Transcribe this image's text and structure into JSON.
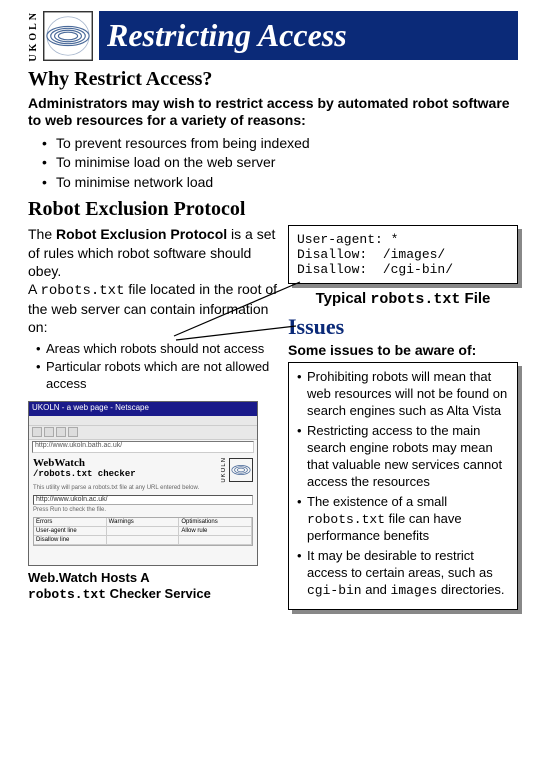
{
  "brand_vertical": "UKOLN",
  "title": "Restricting Access",
  "colors": {
    "title_bg": "#0b2a78",
    "title_fg": "#ffffff",
    "issues_title": "#0b2a78",
    "box_shadow": "#888888",
    "border": "#000000"
  },
  "section1": {
    "heading": "Why Restrict Access?",
    "intro": "Administrators may wish to restrict access by automated robot software to web resources for a variety of reasons:",
    "bullets": [
      "To prevent resources from being indexed",
      "To minimise load on the web server",
      "To minimise network load"
    ]
  },
  "section2": {
    "heading": "Robot Exclusion Protocol",
    "paragraph_html": "The <b>Robot Exclusion Protocol</b> is a set of rules which robot software should obey.<br>A <span class='mono'>robots.txt</span> file located in the root of the web server can contain information on:",
    "sub_bullets": [
      "Areas which robots should not access",
      "Particular robots which are not allowed access"
    ]
  },
  "codebox": {
    "lines": [
      "User-agent: *",
      "Disallow:  /images/",
      "Disallow:  /cgi-bin/"
    ],
    "caption_prefix": "Typical ",
    "caption_code": "robots.txt",
    "caption_suffix": " File"
  },
  "issues": {
    "heading": "Issues",
    "intro": "Some issues to be aware of:",
    "items_html": [
      "Prohibiting robots will mean that web resources will not be found on search engines such as Alta Vista",
      "Restricting access to the main search engine robots may mean that valuable new services cannot access the resources",
      "The existence of a small <span class='mono'>robots.txt</span> file can have performance benefits",
      "It may be desirable to restrict access to certain areas, such as <span class='mono'>cgi-bin</span> and <span class='mono'>images</span> directories."
    ]
  },
  "screenshot": {
    "window_title": "UKOLN - a web page - Netscape",
    "url_hint": "http://www.ukoln.bath.ac.uk/",
    "page_heading": "WebWatch",
    "page_sub": "/robots.txt checker",
    "input_hint": "http://www.ukoln.ac.uk/",
    "table_headers": [
      "Errors",
      "Warnings",
      "Optimisations"
    ]
  },
  "caption_line1": "Web.Watch Hosts A",
  "caption_line2_code": "robots.txt",
  "caption_line2_rest": " Checker Service"
}
